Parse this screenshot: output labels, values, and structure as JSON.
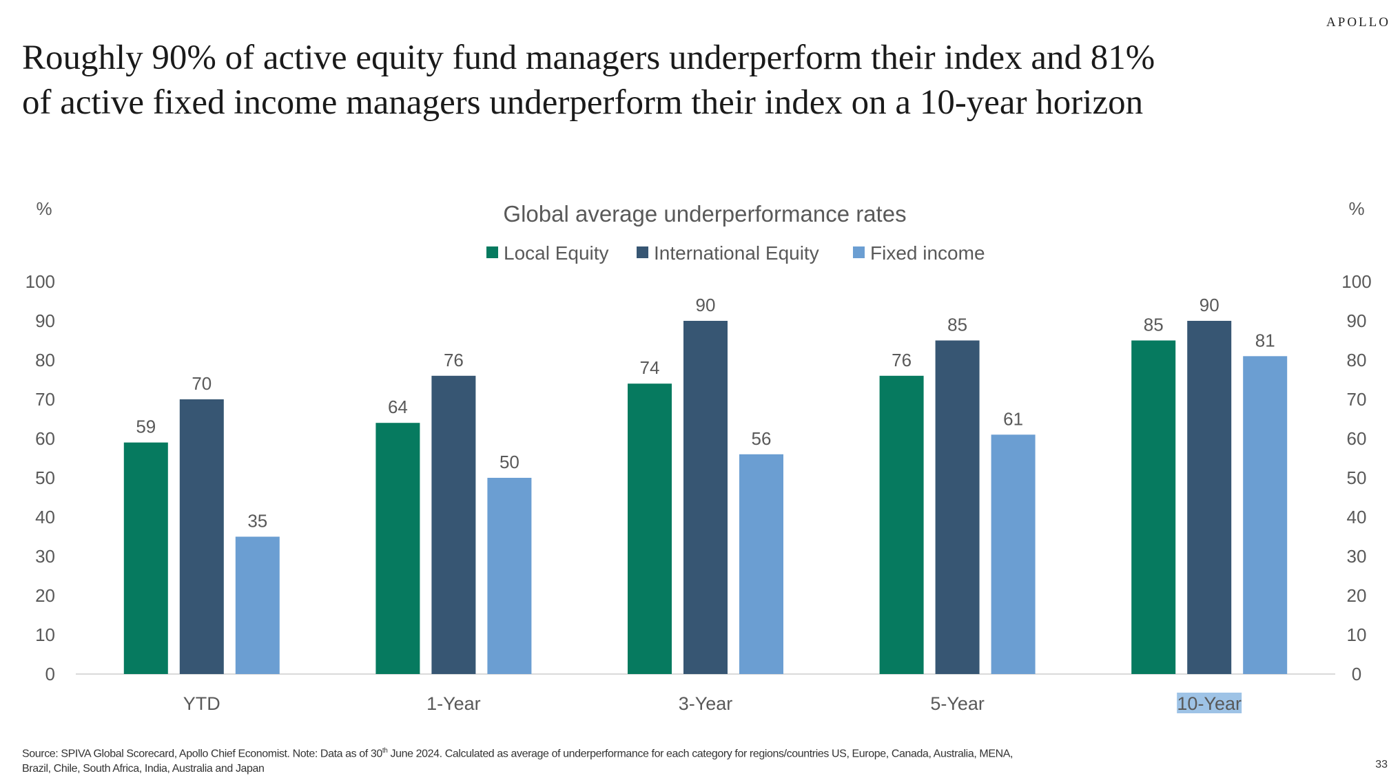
{
  "brand": "APOLLO",
  "headline": {
    "line1": "Roughly 90% of active equity fund managers underperform their index and 81%",
    "line2": "of active fixed income managers underperform their index on a 10-year horizon"
  },
  "footnote": {
    "part1": "Source: SPIVA Global Scorecard, Apollo Chief Economist. Note: Data as of 30",
    "sup": "th",
    "part2": " June 2024. Calculated as average of underperformance  for each category for regions/countries US, Europe, Canada, Australia, MENA,",
    "line2": "Brazil, Chile, South Africa, India, Australia and Japan"
  },
  "page_number": "33",
  "colors": {
    "local_equity": "#067a5f",
    "international_equity": "#375673",
    "fixed_income": "#6b9ed2",
    "highlight": "#9ec3e6",
    "axis_text": "#595959"
  },
  "chart_data": {
    "type": "bar",
    "title": "Global average underperformance rates",
    "ylabel_left": "%",
    "ylabel_right": "%",
    "ylim": [
      0,
      100
    ],
    "yticks": [
      0,
      10,
      20,
      30,
      40,
      50,
      60,
      70,
      80,
      90,
      100
    ],
    "categories": [
      "YTD",
      "1-Year",
      "3-Year",
      "5-Year",
      "10-Year"
    ],
    "highlighted_category": "10-Year",
    "legend_position": "top-center",
    "grid": false,
    "series": [
      {
        "name": "Local Equity",
        "values": [
          59,
          64,
          74,
          76,
          85
        ]
      },
      {
        "name": "International Equity",
        "values": [
          70,
          76,
          90,
          85,
          90
        ]
      },
      {
        "name": "Fixed income",
        "values": [
          35,
          50,
          56,
          61,
          81
        ]
      }
    ]
  }
}
